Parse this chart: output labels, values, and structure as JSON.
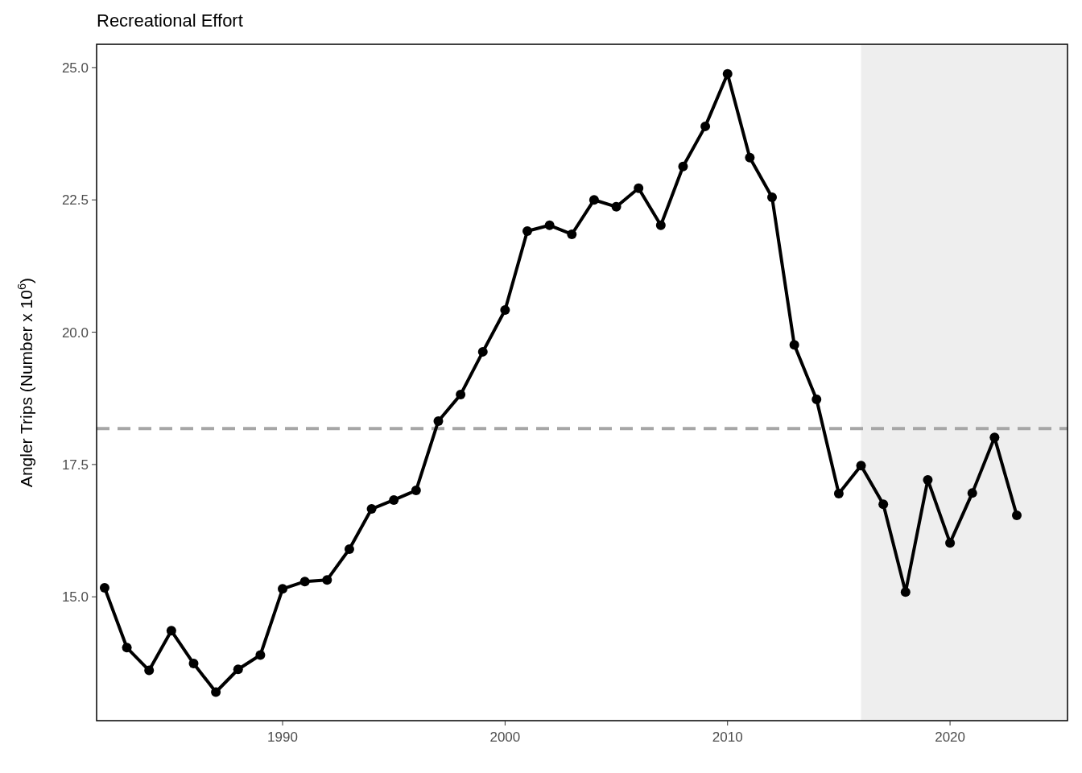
{
  "chart_data": {
    "type": "line",
    "title": "Recreational Effort",
    "ylabel": "Angler Trips (Number x 10$^{6}$)",
    "x": [
      1982,
      1983,
      1984,
      1985,
      1986,
      1987,
      1988,
      1989,
      1990,
      1991,
      1992,
      1993,
      1994,
      1995,
      1996,
      1997,
      1998,
      1999,
      2000,
      2001,
      2002,
      2003,
      2004,
      2005,
      2006,
      2007,
      2008,
      2009,
      2010,
      2011,
      2012,
      2013,
      2014,
      2015,
      2016,
      2017,
      2018,
      2019,
      2020,
      2021,
      2022,
      2023
    ],
    "series": [
      {
        "color": "#000000",
        "values": [
          15.17,
          14.04,
          13.61,
          14.36,
          13.74,
          13.2,
          13.63,
          13.9,
          15.15,
          15.29,
          15.32,
          15.9,
          16.66,
          16.83,
          17.01,
          18.32,
          18.82,
          19.63,
          20.42,
          21.91,
          22.02,
          21.85,
          22.5,
          22.37,
          22.72,
          22.02,
          23.13,
          23.89,
          24.88,
          23.3,
          22.55,
          19.76,
          18.73,
          16.95,
          17.48,
          16.75,
          15.09,
          17.21,
          16.02,
          16.96,
          18.01,
          16.54
        ]
      }
    ],
    "xlim": [
      1981.64,
      2025.28
    ],
    "ylim": [
      12.66,
      25.44
    ],
    "xticks": [
      1990,
      2000,
      2010,
      2020
    ],
    "yticks": [
      {
        "value": 15,
        "label": "15.0"
      },
      17.5,
      {
        "value": 20,
        "label": "20.0"
      },
      22.5,
      {
        "value": 25,
        "label": "25.0"
      }
    ],
    "ref_lines": [
      {
        "axis": "y",
        "value": 18.18,
        "color": "#a6a6a6",
        "line_style": "dashed"
      }
    ],
    "bands": [
      {
        "axis": "x",
        "from": 2016,
        "to": 2025.28,
        "color": "#eeeeee"
      }
    ],
    "grid": false,
    "marker": "circle",
    "line_style": "solid"
  }
}
